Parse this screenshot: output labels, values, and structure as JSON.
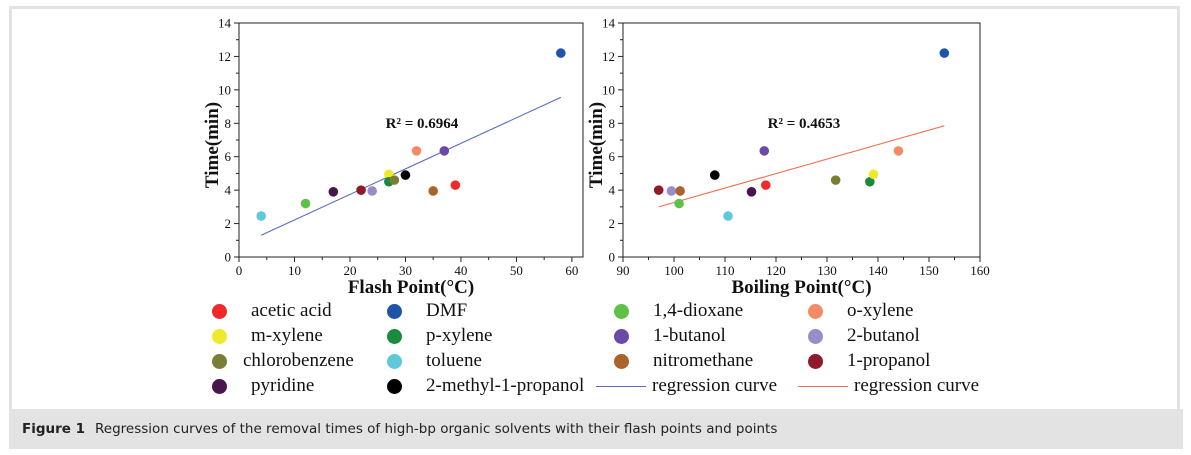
{
  "chart_data": [
    {
      "type": "scatter",
      "title": "",
      "xlabel": "Flash Point(°C)",
      "ylabel": "Time(min)",
      "xlim": [
        0,
        62
      ],
      "ylim": [
        0,
        14
      ],
      "xticks": [
        0,
        10,
        20,
        30,
        40,
        50,
        60
      ],
      "yticks": [
        0,
        2,
        4,
        6,
        8,
        10,
        12,
        14
      ],
      "grid": false,
      "annotation": "R² = 0.6964",
      "regression": {
        "name": "regression curve",
        "color": "#5a6bbf",
        "x": [
          4,
          58
        ],
        "y": [
          1.3,
          9.55
        ]
      },
      "points": [
        {
          "name": "toluene",
          "x": 4,
          "y": 2.45
        },
        {
          "name": "1,4-dioxane",
          "x": 12,
          "y": 3.2
        },
        {
          "name": "pyridine",
          "x": 17,
          "y": 3.9
        },
        {
          "name": "1-propanol",
          "x": 22,
          "y": 4.0
        },
        {
          "name": "2-butanol",
          "x": 24,
          "y": 3.95
        },
        {
          "name": "m-xylene",
          "x": 27,
          "y": 4.95
        },
        {
          "name": "p-xylene",
          "x": 27,
          "y": 4.5
        },
        {
          "name": "chlorobenzene",
          "x": 28,
          "y": 4.6
        },
        {
          "name": "2-methyl-1-propanol",
          "x": 30,
          "y": 4.9
        },
        {
          "name": "o-xylene",
          "x": 32,
          "y": 6.35
        },
        {
          "name": "nitromethane",
          "x": 35,
          "y": 3.95
        },
        {
          "name": "1-butanol",
          "x": 37,
          "y": 6.35
        },
        {
          "name": "acetic acid",
          "x": 39,
          "y": 4.3
        },
        {
          "name": "DMF",
          "x": 58,
          "y": 12.2
        }
      ]
    },
    {
      "type": "scatter",
      "title": "",
      "xlabel": "Boiling Point(°C)",
      "ylabel": "Time(min)",
      "xlim": [
        90,
        160
      ],
      "ylim": [
        0,
        14
      ],
      "xticks": [
        90,
        100,
        110,
        120,
        130,
        140,
        150,
        160
      ],
      "yticks": [
        0,
        2,
        4,
        6,
        8,
        10,
        12,
        14
      ],
      "grid": false,
      "annotation": "R² = 0.4653",
      "regression": {
        "name": "regression curve",
        "color": "#f07050",
        "x": [
          97,
          153
        ],
        "y": [
          3.0,
          7.85
        ]
      },
      "points": [
        {
          "name": "1-propanol",
          "x": 97,
          "y": 4.0
        },
        {
          "name": "2-butanol",
          "x": 99.5,
          "y": 3.95
        },
        {
          "name": "nitromethane",
          "x": 101.2,
          "y": 3.95
        },
        {
          "name": "1,4-dioxane",
          "x": 101,
          "y": 3.2
        },
        {
          "name": "2-methyl-1-propanol",
          "x": 108,
          "y": 4.9
        },
        {
          "name": "toluene",
          "x": 110.6,
          "y": 2.45
        },
        {
          "name": "pyridine",
          "x": 115.2,
          "y": 3.9
        },
        {
          "name": "1-butanol",
          "x": 117.7,
          "y": 6.35
        },
        {
          "name": "acetic acid",
          "x": 118,
          "y": 4.3
        },
        {
          "name": "chlorobenzene",
          "x": 131.7,
          "y": 4.6
        },
        {
          "name": "p-xylene",
          "x": 138.4,
          "y": 4.5
        },
        {
          "name": "m-xylene",
          "x": 139.1,
          "y": 4.95
        },
        {
          "name": "o-xylene",
          "x": 144,
          "y": 6.35
        },
        {
          "name": "DMF",
          "x": 153,
          "y": 12.2
        }
      ]
    }
  ],
  "colors": {
    "acetic acid": "#ee2a2a",
    "DMF": "#1f55a8",
    "1,4-dioxane": "#5fc04a",
    "o-xylene": "#f28c66",
    "m-xylene": "#f0e82a",
    "p-xylene": "#1a8a3e",
    "1-butanol": "#6a4aa6",
    "2-butanol": "#9a8cc8",
    "chlorobenzene": "#7a7d35",
    "toluene": "#5fc8db",
    "nitromethane": "#a8642a",
    "1-propanol": "#8e1a2a",
    "pyridine": "#4a1450",
    "2-methyl-1-propanol": "#000000"
  },
  "legend": [
    {
      "label": "acetic acid",
      "kind": "dot"
    },
    {
      "label": "DMF",
      "kind": "dot"
    },
    {
      "label": "1,4-dioxane",
      "kind": "dot"
    },
    {
      "label": "o-xylene",
      "kind": "dot"
    },
    {
      "label": "m-xylene",
      "kind": "dot"
    },
    {
      "label": "p-xylene",
      "kind": "dot"
    },
    {
      "label": "1-butanol",
      "kind": "dot"
    },
    {
      "label": "2-butanol",
      "kind": "dot"
    },
    {
      "label": "chlorobenzene",
      "kind": "dot"
    },
    {
      "label": "toluene",
      "kind": "dot"
    },
    {
      "label": "nitromethane",
      "kind": "dot"
    },
    {
      "label": "1-propanol",
      "kind": "dot"
    },
    {
      "label": "pyridine",
      "kind": "dot"
    },
    {
      "label": "2-methyl-1-propanol",
      "kind": "dot"
    },
    {
      "label": "regression curve",
      "kind": "line",
      "color": "#5a6bbf"
    },
    {
      "label": "regression curve",
      "kind": "line",
      "color": "#f07050"
    }
  ],
  "caption": {
    "figure_label": "Figure 1",
    "text": "Regression curves of the removal times of high-bp organic solvents with their flash points and points"
  }
}
